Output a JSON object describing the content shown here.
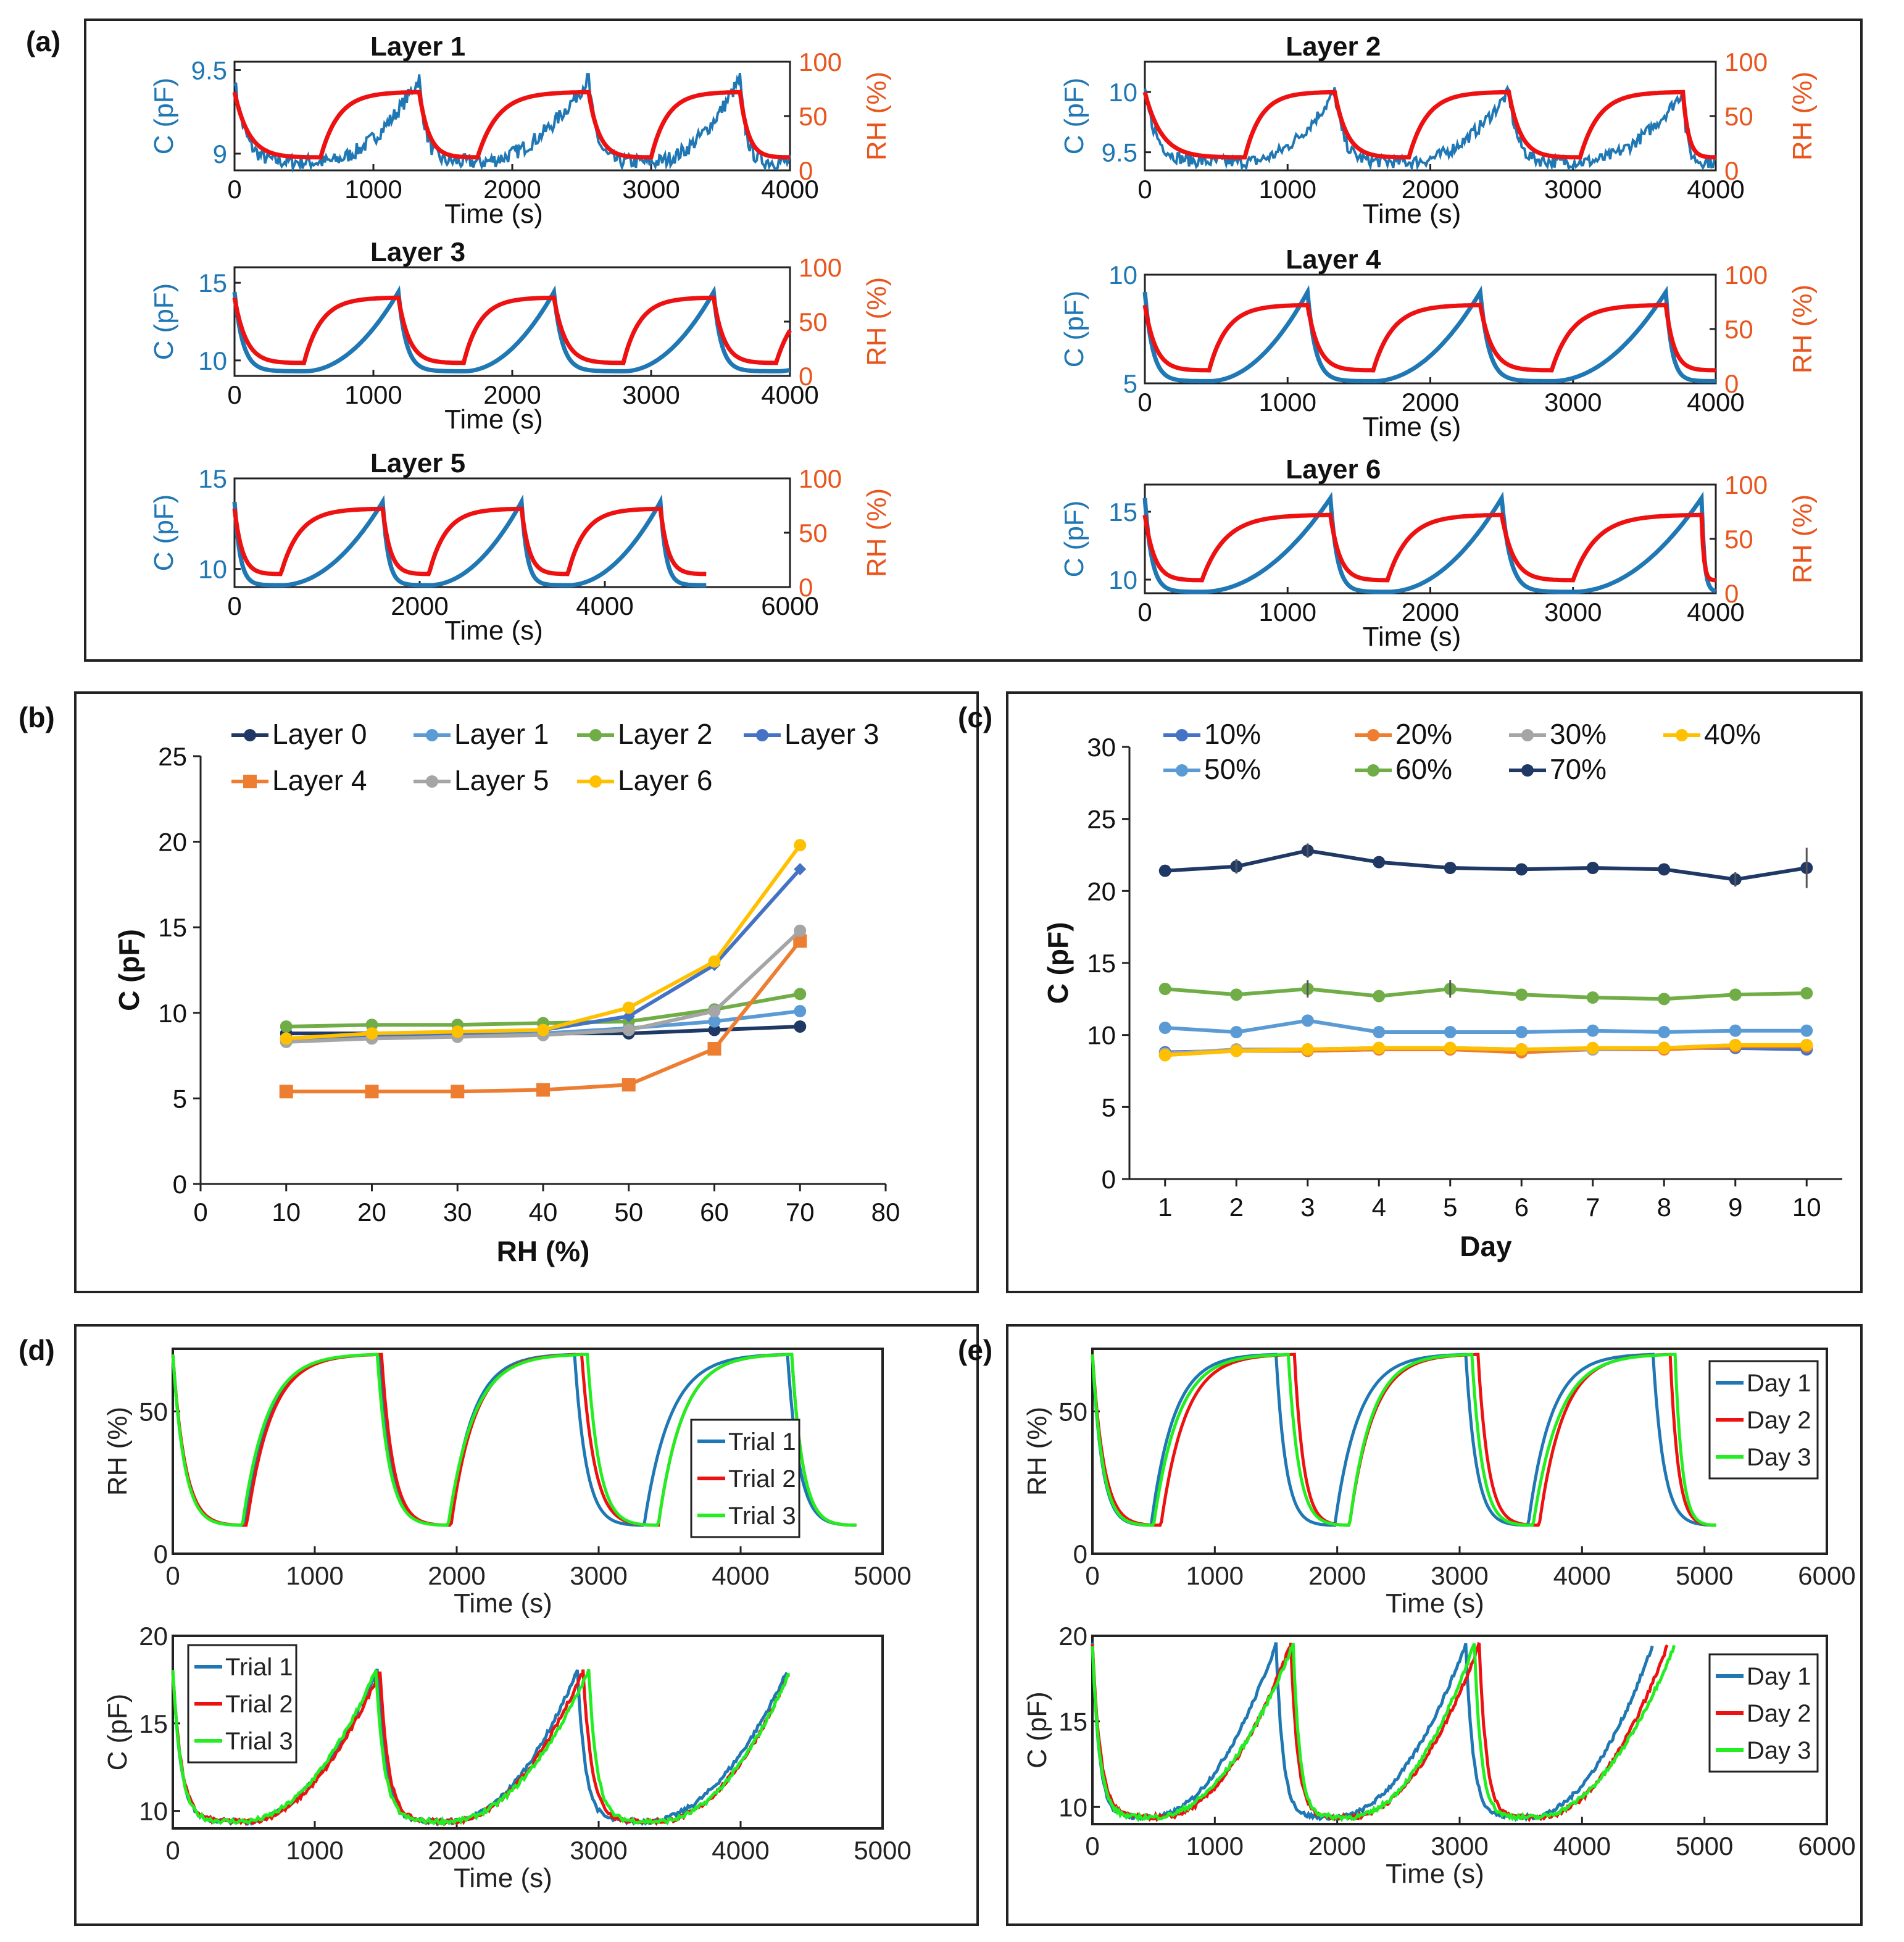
{
  "panels": {
    "a": "(a)",
    "b": "(b)",
    "c": "(c)",
    "d": "(d)",
    "e": "(e)"
  },
  "colors": {
    "c_blue": "#1f77b4",
    "rh_red": "#ee1111",
    "rh_axis": "#e8551d",
    "trial_green": "#22ee22"
  },
  "chart_data": [
    {
      "id": "a1",
      "type": "line",
      "title": "Layer 1",
      "xlabel": "Time (s)",
      "ylabel": "C (pF)",
      "ylabel2": "RH (%)",
      "xlim": [
        0,
        4000
      ],
      "xticks": [
        0,
        1000,
        2000,
        3000,
        4000
      ],
      "ylim": [
        8.9,
        9.55
      ],
      "yticks": [
        9,
        9.5
      ],
      "y2lim": [
        0,
        100
      ],
      "y2ticks": [
        0,
        50,
        100
      ],
      "cycles": [
        [
          0,
          620,
          1330
        ],
        [
          1330,
          1750,
          2550
        ],
        [
          2550,
          3000,
          3640
        ],
        [
          3640,
          4000,
          null
        ]
      ],
      "rh_range": [
        12,
        72
      ],
      "c_range": [
        8.95,
        9.45
      ]
    },
    {
      "id": "a2",
      "type": "line",
      "title": "Layer 2",
      "xlabel": "Time (s)",
      "ylabel": "C (pF)",
      "ylabel2": "RH (%)",
      "xlim": [
        0,
        4000
      ],
      "xticks": [
        0,
        1000,
        2000,
        3000,
        4000
      ],
      "ylim": [
        9.35,
        10.25
      ],
      "yticks": [
        9.5,
        10
      ],
      "y2lim": [
        0,
        100
      ],
      "y2ticks": [
        0,
        50,
        100
      ],
      "cycles": [
        [
          0,
          700,
          1330
        ],
        [
          1330,
          1850,
          2550
        ],
        [
          2550,
          3050,
          3770
        ],
        [
          3770,
          4000,
          null
        ]
      ],
      "rh_range": [
        12,
        72
      ],
      "c_range": [
        9.42,
        10.0
      ]
    },
    {
      "id": "a3",
      "type": "line",
      "title": "Layer 3",
      "xlabel": "Time (s)",
      "ylabel": "C (pF)",
      "ylabel2": "RH (%)",
      "xlim": [
        0,
        4000
      ],
      "xticks": [
        0,
        1000,
        2000,
        3000,
        4000
      ],
      "ylim": [
        9,
        16
      ],
      "yticks": [
        10,
        15
      ],
      "y2lim": [
        0,
        100
      ],
      "y2ticks": [
        0,
        50,
        100
      ],
      "cycles": [
        [
          0,
          500,
          1180
        ],
        [
          1180,
          1650,
          2300
        ],
        [
          2300,
          2800,
          3450
        ],
        [
          3450,
          3900,
          null
        ]
      ],
      "rh_range": [
        12,
        72
      ],
      "c_range": [
        9.3,
        14.4
      ]
    },
    {
      "id": "a4",
      "type": "line",
      "title": "Layer 4",
      "xlabel": "Time (s)",
      "ylabel": "C (pF)",
      "ylabel2": "RH (%)",
      "xlim": [
        0,
        4000
      ],
      "xticks": [
        0,
        1000,
        2000,
        3000,
        4000
      ],
      "ylim": [
        5,
        10
      ],
      "yticks": [
        5,
        10
      ],
      "y2lim": [
        0,
        100
      ],
      "y2ticks": [
        0,
        50,
        100
      ],
      "cycles": [
        [
          0,
          450,
          1140
        ],
        [
          1140,
          1600,
          2350
        ],
        [
          2350,
          2850,
          3650
        ],
        [
          3650,
          4000,
          null
        ]
      ],
      "rh_range": [
        12,
        72
      ],
      "c_range": [
        5.1,
        9.2
      ]
    },
    {
      "id": "a5",
      "type": "line",
      "title": "Layer 5",
      "xlabel": "Time (s)",
      "ylabel": "C (pF)",
      "ylabel2": "RH (%)",
      "xlim": [
        0,
        6000
      ],
      "xticks": [
        0,
        2000,
        4000,
        6000
      ],
      "ylim": [
        9,
        15
      ],
      "yticks": [
        10,
        15
      ],
      "y2lim": [
        0,
        100
      ],
      "y2ticks": [
        0,
        50,
        100
      ],
      "cycles": [
        [
          0,
          500,
          1600
        ],
        [
          1600,
          2100,
          3100
        ],
        [
          3100,
          3600,
          4600
        ],
        [
          4600,
          5100,
          null
        ]
      ],
      "rh_range": [
        12,
        72
      ],
      "c_range": [
        9.1,
        13.7
      ]
    },
    {
      "id": "a6",
      "type": "line",
      "title": "Layer 6",
      "xlabel": "Time (s)",
      "ylabel": "C (pF)",
      "ylabel2": "RH (%)",
      "xlim": [
        0,
        4000
      ],
      "xticks": [
        0,
        1000,
        2000,
        3000,
        4000
      ],
      "ylim": [
        9,
        17
      ],
      "yticks": [
        10,
        15
      ],
      "y2lim": [
        0,
        100
      ],
      "y2ticks": [
        0,
        50,
        100
      ],
      "cycles": [
        [
          0,
          400,
          1300
        ],
        [
          1300,
          1700,
          2500
        ],
        [
          2500,
          3000,
          3900
        ],
        [
          3900,
          4000,
          null
        ]
      ],
      "rh_range": [
        12,
        72
      ],
      "c_range": [
        9.1,
        16.0
      ]
    },
    {
      "id": "b",
      "type": "line",
      "xlabel": "RH (%)",
      "ylabel": "C (pF)",
      "xlim": [
        0,
        80
      ],
      "xticks": [
        0,
        10,
        20,
        30,
        40,
        50,
        60,
        70,
        80
      ],
      "ylim": [
        0,
        25
      ],
      "yticks": [
        0,
        5,
        10,
        15,
        20,
        25
      ],
      "x": [
        10,
        20,
        30,
        40,
        50,
        60,
        70
      ],
      "series": [
        {
          "name": "Layer 0",
          "color": "#203864",
          "marker": "circle",
          "values": [
            8.8,
            8.8,
            8.8,
            8.8,
            8.8,
            9.0,
            9.2
          ]
        },
        {
          "name": "Layer 1",
          "color": "#5b9bd5",
          "marker": "circle",
          "values": [
            8.5,
            8.6,
            8.7,
            8.8,
            9.1,
            9.5,
            10.1
          ]
        },
        {
          "name": "Layer 2",
          "color": "#70ad47",
          "marker": "circle",
          "values": [
            9.2,
            9.3,
            9.3,
            9.4,
            9.5,
            10.2,
            11.1
          ]
        },
        {
          "name": "Layer 3",
          "color": "#4472c4",
          "marker": "diamond",
          "values": [
            8.4,
            8.6,
            8.8,
            9.0,
            9.8,
            12.8,
            18.4
          ]
        },
        {
          "name": "Layer 4",
          "color": "#ed7d31",
          "marker": "square",
          "values": [
            5.4,
            5.4,
            5.4,
            5.5,
            5.8,
            7.9,
            14.2
          ]
        },
        {
          "name": "Layer 5",
          "color": "#a5a5a5",
          "marker": "circle",
          "values": [
            8.3,
            8.5,
            8.6,
            8.7,
            9.0,
            10.1,
            14.8
          ]
        },
        {
          "name": "Layer 6",
          "color": "#ffc000",
          "marker": "circle",
          "values": [
            8.5,
            8.8,
            8.9,
            9.0,
            10.3,
            13.0,
            19.8
          ]
        }
      ]
    },
    {
      "id": "c",
      "type": "line",
      "xlabel": "Day",
      "ylabel": "C (pF)",
      "xlim": [
        0.5,
        10.5
      ],
      "xticks": [
        1,
        2,
        3,
        4,
        5,
        6,
        7,
        8,
        9,
        10
      ],
      "ylim": [
        0,
        30
      ],
      "yticks": [
        0,
        5,
        10,
        15,
        20,
        25,
        30
      ],
      "x": [
        1,
        2,
        3,
        4,
        5,
        6,
        7,
        8,
        9,
        10
      ],
      "series": [
        {
          "name": "10%",
          "color": "#4472c4",
          "values": [
            8.8,
            8.9,
            8.9,
            9.0,
            9.0,
            9.0,
            9.0,
            9.1,
            9.1,
            9.0
          ]
        },
        {
          "name": "20%",
          "color": "#ed7d31",
          "values": [
            8.6,
            8.9,
            8.9,
            9.0,
            9.0,
            8.8,
            9.0,
            9.0,
            9.2,
            9.2
          ]
        },
        {
          "name": "30%",
          "color": "#a5a5a5",
          "values": [
            8.7,
            9.0,
            9.0,
            9.1,
            9.1,
            9.0,
            9.0,
            9.1,
            9.3,
            9.3
          ]
        },
        {
          "name": "40%",
          "color": "#ffc000",
          "values": [
            8.6,
            8.9,
            9.0,
            9.1,
            9.1,
            9.0,
            9.1,
            9.1,
            9.3,
            9.3
          ]
        },
        {
          "name": "50%",
          "color": "#5b9bd5",
          "values": [
            10.5,
            10.2,
            11.0,
            10.2,
            10.2,
            10.2,
            10.3,
            10.2,
            10.3,
            10.3
          ]
        },
        {
          "name": "60%",
          "color": "#70ad47",
          "values": [
            13.2,
            12.8,
            13.2,
            12.7,
            13.2,
            12.8,
            12.6,
            12.5,
            12.8,
            12.9
          ]
        },
        {
          "name": "70%",
          "color": "#203864",
          "values": [
            21.4,
            21.7,
            22.8,
            22.0,
            21.6,
            21.5,
            21.6,
            21.5,
            20.8,
            21.6
          ]
        }
      ]
    },
    {
      "id": "d_rh",
      "type": "line",
      "xlabel": "Time (s)",
      "ylabel": "RH (%)",
      "xlim": [
        0,
        5000
      ],
      "xticks": [
        0,
        1000,
        2000,
        3000,
        4000,
        5000
      ],
      "ylim": [
        0,
        72
      ],
      "yticks": [
        0,
        50
      ],
      "series": [
        {
          "name": "Trial 1",
          "color": "#1f77b4",
          "cycles": [
            [
              0,
              500,
              1450
            ],
            [
              1450,
              1950,
              2830
            ],
            [
              2830,
              3320,
              4330
            ],
            [
              4330,
              4820,
              null
            ]
          ]
        },
        {
          "name": "Trial 2",
          "color": "#ee1111",
          "cycles": [
            [
              0,
              520,
              1470
            ],
            [
              1470,
              1960,
              2880
            ],
            [
              2880,
              3420,
              4360
            ],
            [
              4360,
              4820,
              null
            ]
          ]
        },
        {
          "name": "Trial 3",
          "color": "#22ee22",
          "cycles": [
            [
              0,
              490,
              1440
            ],
            [
              1440,
              1940,
              2920
            ],
            [
              2920,
              3420,
              4360
            ],
            [
              4360,
              4820,
              null
            ]
          ]
        }
      ],
      "rh_range": [
        10,
        70
      ]
    },
    {
      "id": "d_c",
      "type": "line",
      "xlabel": "Time (s)",
      "ylabel": "C (pF)",
      "xlim": [
        0,
        5000
      ],
      "xticks": [
        0,
        1000,
        2000,
        3000,
        4000,
        5000
      ],
      "ylim": [
        9,
        20
      ],
      "yticks": [
        10,
        15,
        20
      ],
      "series": [
        {
          "name": "Trial 1",
          "color": "#1f77b4",
          "cycles": [
            [
              0,
              500,
              1440
            ],
            [
              1440,
              1950,
              2850
            ],
            [
              2850,
              3330,
              4330
            ]
          ]
        },
        {
          "name": "Trial 2",
          "color": "#ee1111",
          "cycles": [
            [
              0,
              520,
              1460
            ],
            [
              1460,
              1960,
              2890
            ],
            [
              2890,
              3420,
              4350
            ]
          ]
        },
        {
          "name": "Trial 3",
          "color": "#22ee22",
          "cycles": [
            [
              0,
              490,
              1430
            ],
            [
              1430,
              1940,
              2930
            ],
            [
              2930,
              3420,
              4350
            ]
          ]
        }
      ],
      "c_range": [
        9.4,
        18.0
      ]
    },
    {
      "id": "e_rh",
      "type": "line",
      "xlabel": "Time (s)",
      "ylabel": "RH (%)",
      "xlim": [
        0,
        6000
      ],
      "xticks": [
        0,
        1000,
        2000,
        3000,
        4000,
        5000,
        6000
      ],
      "ylim": [
        0,
        72
      ],
      "yticks": [
        0,
        50
      ],
      "series": [
        {
          "name": "Day 1",
          "color": "#1f77b4",
          "cycles": [
            [
              0,
              480,
              1500
            ],
            [
              1500,
              1980,
              3050
            ],
            [
              3050,
              3560,
              4580
            ],
            [
              4580,
              5100,
              null
            ]
          ]
        },
        {
          "name": "Day 2",
          "color": "#ee1111",
          "cycles": [
            [
              0,
              560,
              1650
            ],
            [
              1650,
              2100,
              3150
            ],
            [
              3150,
              3650,
              4720
            ],
            [
              4720,
              5100,
              null
            ]
          ]
        },
        {
          "name": "Day 3",
          "color": "#22ee22",
          "cycles": [
            [
              0,
              500,
              1600
            ],
            [
              1600,
              2100,
              3100
            ],
            [
              3100,
              3600,
              4760
            ],
            [
              4760,
              5100,
              null
            ]
          ]
        }
      ],
      "rh_range": [
        10,
        70
      ]
    },
    {
      "id": "e_c",
      "type": "line",
      "xlabel": "Time (s)",
      "ylabel": "C (pF)",
      "xlim": [
        0,
        6000
      ],
      "xticks": [
        0,
        1000,
        2000,
        3000,
        4000,
        5000,
        6000
      ],
      "ylim": [
        9,
        20
      ],
      "yticks": [
        10,
        15,
        20
      ],
      "series": [
        {
          "name": "Day 1",
          "color": "#1f77b4",
          "cycles": [
            [
              0,
              480,
              1500
            ],
            [
              1500,
              1980,
              3050
            ],
            [
              3050,
              3560,
              4580
            ]
          ]
        },
        {
          "name": "Day 2",
          "color": "#ee1111",
          "cycles": [
            [
              0,
              560,
              1620
            ],
            [
              1620,
              2100,
              3160
            ],
            [
              3160,
              3650,
              4700
            ]
          ]
        },
        {
          "name": "Day 3",
          "color": "#22ee22",
          "cycles": [
            [
              0,
              500,
              1640
            ],
            [
              1640,
              2100,
              3120
            ],
            [
              3120,
              3600,
              4760
            ]
          ]
        }
      ],
      "c_range": [
        9.4,
        19.5
      ]
    }
  ]
}
